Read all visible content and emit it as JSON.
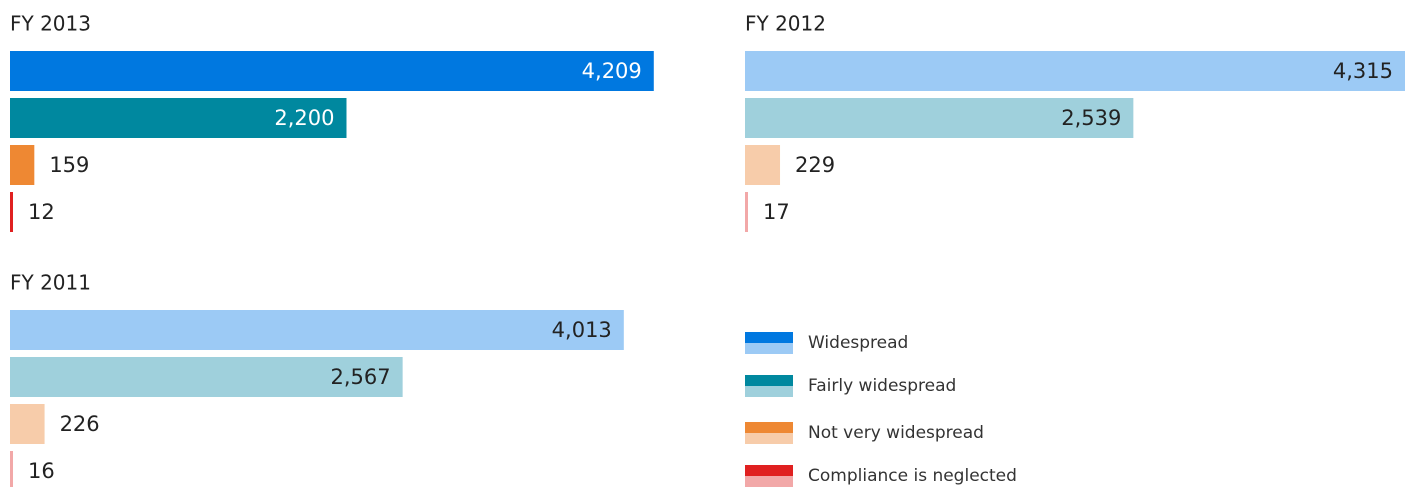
{
  "chart_data": [
    {
      "type": "bar",
      "title": "FY 2013",
      "values": [
        4209,
        2200,
        159,
        12
      ],
      "value_labels": [
        "4,209",
        "2,200",
        "159",
        "12"
      ],
      "colors": [
        "#0078e0",
        "#00889f",
        "#ee8833",
        "#e02020"
      ]
    },
    {
      "type": "bar",
      "title": "FY 2012",
      "values": [
        4315,
        2539,
        229,
        17
      ],
      "value_labels": [
        "4,315",
        "2,539",
        "229",
        "17"
      ],
      "colors": [
        "#9ccaf5",
        "#9fd0dc",
        "#f7ccaa",
        "#f2a8a8"
      ]
    },
    {
      "type": "bar",
      "title": "FY 2011",
      "values": [
        4013,
        2567,
        226,
        16
      ],
      "value_labels": [
        "4,013",
        "2,567",
        "226",
        "16"
      ],
      "colors": [
        "#9ccaf5",
        "#9fd0dc",
        "#f7ccaa",
        "#f2a8a8"
      ]
    }
  ],
  "legend": {
    "items": [
      {
        "name": "Widespread",
        "colors": [
          "#0078e0",
          "#9ccaf5"
        ]
      },
      {
        "name": "Fairly widespread",
        "colors": [
          "#00889f",
          "#9fd0dc"
        ]
      },
      {
        "name": "Not very widespread",
        "colors": [
          "#ee8833",
          "#f7ccaa"
        ]
      },
      {
        "name": "Compliance is neglected",
        "colors": [
          "#e02020",
          "#f2a8a8"
        ]
      }
    ]
  }
}
